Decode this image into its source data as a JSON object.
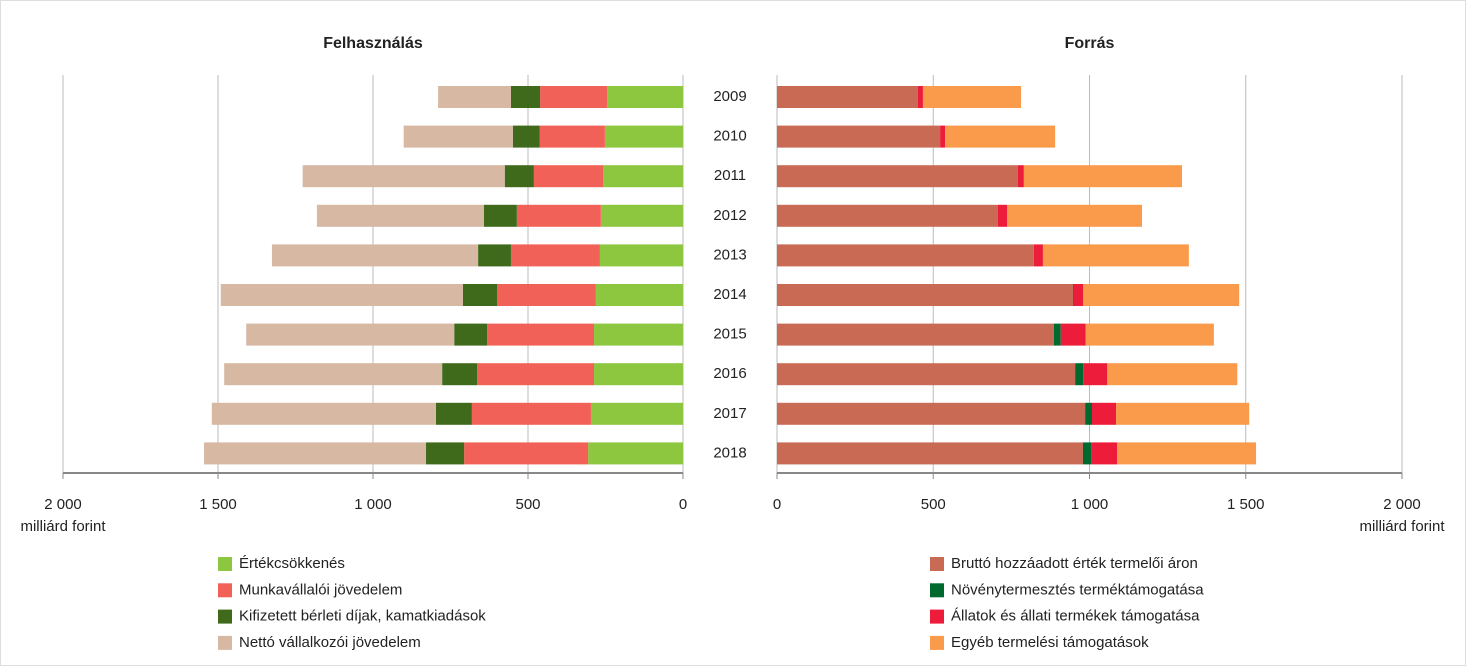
{
  "chart_data": [
    {
      "type": "stacked-hbar",
      "title": "Felhasználás",
      "x_label": "milliárd forint",
      "x_reversed": true,
      "categories": [
        "2009",
        "2010",
        "2011",
        "2012",
        "2013",
        "2014",
        "2015",
        "2016",
        "2017",
        "2018"
      ],
      "xlim": [
        0,
        2000
      ],
      "xticks": [
        0,
        500,
        {
          "value": 1000,
          "label": "1 000"
        },
        {
          "value": 1500,
          "label": "1 500"
        },
        {
          "value": 2000,
          "label": "2 000"
        }
      ],
      "grid": true,
      "series": [
        {
          "name": "Értékcsökkenés",
          "color": "#8dc63f",
          "values": [
            245,
            252,
            258,
            265,
            268,
            281,
            287,
            287,
            297,
            306
          ]
        },
        {
          "name": "Munkavállalói jövedelem",
          "color": "#f26157",
          "values": [
            216,
            210,
            223,
            271,
            287,
            319,
            345,
            377,
            384,
            400
          ]
        },
        {
          "name": "Kifizetett bérleti díjak, kamatkiadások",
          "color": "#3f6a1b",
          "values": [
            94,
            87,
            94,
            106,
            106,
            110,
            106,
            113,
            116,
            123
          ]
        },
        {
          "name": "Nettó vállalkozói jövedelem",
          "color": "#d6b8a3",
          "values": [
            235,
            352,
            652,
            539,
            665,
            781,
            671,
            703,
            723,
            716
          ]
        }
      ]
    },
    {
      "type": "stacked-hbar",
      "title": "Forrás",
      "x_label": "milliárd forint",
      "x_reversed": false,
      "xlim": [
        0,
        2000
      ],
      "xticks": [
        0,
        500,
        {
          "value": 1000,
          "label": "1 000"
        },
        {
          "value": 1500,
          "label": "1 500"
        },
        {
          "value": 2000,
          "label": "2 000"
        }
      ],
      "grid": true,
      "series": [
        {
          "name": "Bruttó hozzáadott érték termelői áron",
          "color": "#c96a55",
          "values": [
            451,
            522,
            771,
            707,
            822,
            947,
            886,
            954,
            986,
            979
          ]
        },
        {
          "name": "Növénytermesztés terméktámogatása",
          "color": "#006a2e",
          "values": [
            0,
            0,
            0,
            0,
            0,
            3,
            22,
            26,
            22,
            26
          ]
        },
        {
          "name": "Állatok és állati termékek támogatása",
          "color": "#ec1c3a",
          "values": [
            16,
            16,
            19,
            29,
            29,
            30,
            80,
            77,
            77,
            83
          ]
        },
        {
          "name": "Egyéb termelési támogatások",
          "color": "#f99b4a",
          "values": [
            314,
            352,
            506,
            432,
            467,
            499,
            410,
            416,
            426,
            445
          ]
        }
      ]
    }
  ]
}
